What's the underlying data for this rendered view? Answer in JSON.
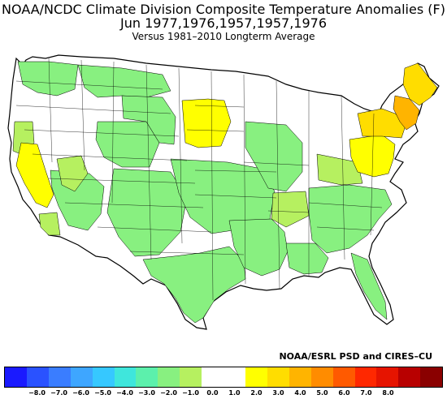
{
  "title": {
    "line1": "NOAA/NCDC Climate Division Composite Temperature Anomalies (F)",
    "line2": "Jun   1977,1976,1957,1957,1976",
    "line3": "Versus 1981–2010 Longterm Average"
  },
  "credit": "NOAA/ESRL PSD and CIRES–CU",
  "legend": {
    "colors": [
      "#1a1aff",
      "#2a52ff",
      "#3a7dff",
      "#3ea6ff",
      "#36c8ff",
      "#3fe6dc",
      "#5cf0ac",
      "#88f080",
      "#b6f060",
      "#ffffff",
      "#ffffff",
      "#ffff00",
      "#ffdd00",
      "#ffb400",
      "#ff8c00",
      "#ff5a00",
      "#ff2800",
      "#e61400",
      "#b80000",
      "#8a0000"
    ],
    "ticks": [
      "−8.0",
      "−7.0",
      "−6.0",
      "−5.0",
      "−4.0",
      "−3.0",
      "−2.0",
      "−1.0",
      "0.0",
      "1.0",
      "2.0",
      "3.0",
      "4.0",
      "5.0",
      "6.0",
      "7.0",
      "8.0"
    ]
  },
  "map_colors": {
    "land": "#ffffff",
    "green_light": "#b6f060",
    "green": "#88f080",
    "yellow": "#ffff00",
    "yellow_orange": "#ffdd00",
    "orange": "#ffb400",
    "border": "#000000"
  }
}
